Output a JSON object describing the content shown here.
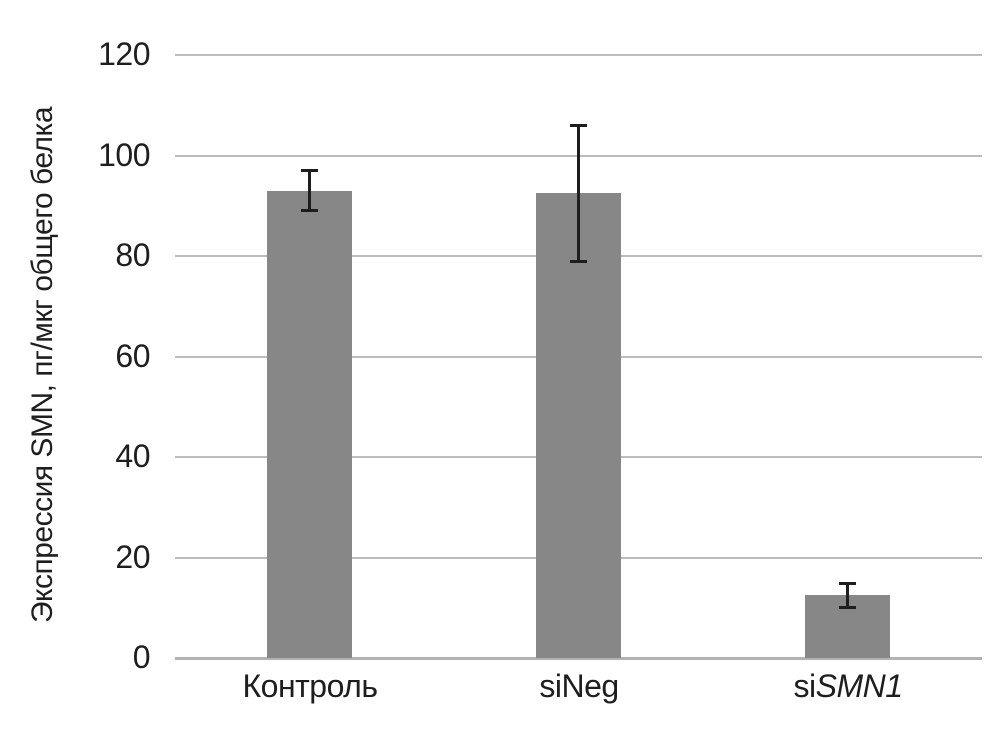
{
  "chart_data": {
    "type": "bar",
    "title": "",
    "xlabel": "",
    "ylabel": "Экспрессия SMN, пг/мкг общего белка",
    "categories": [
      {
        "plain": "Контроль",
        "italic": ""
      },
      {
        "plain": "siNeg",
        "italic": ""
      },
      {
        "plain": "si",
        "italic": "SMN1"
      }
    ],
    "values": [
      93,
      92.5,
      12.5
    ],
    "errors": [
      4,
      13.5,
      2.4
    ],
    "yticks": [
      0,
      20,
      40,
      60,
      80,
      100,
      120
    ],
    "ylim": [
      0,
      120
    ],
    "grid": "horizontal",
    "legend": "none",
    "colors": {
      "bar": "#878787",
      "gridline": "#bcbcbc",
      "axis_line": "#b3b3b3",
      "error_bar": "#1e1e1e",
      "text": "#1e1e1e",
      "background": "#ffffff"
    }
  }
}
